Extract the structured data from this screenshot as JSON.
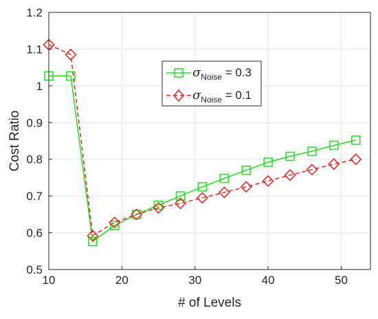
{
  "chart_data": {
    "type": "line",
    "xlabel": "# of Levels",
    "ylabel": "Cost Ratio",
    "xlim": [
      10,
      54
    ],
    "ylim": [
      0.5,
      1.2
    ],
    "xticks": [
      10,
      20,
      30,
      40,
      50
    ],
    "yticks": [
      0.5,
      0.6,
      0.7,
      0.8,
      0.9,
      1,
      1.1,
      1.2
    ],
    "xtick_labels": [
      "10",
      "20",
      "30",
      "40",
      "50"
    ],
    "ytick_labels": [
      "0.5",
      "0.6",
      "0.7",
      "0.8",
      "0.9",
      "1",
      "1.1",
      "1.2"
    ],
    "grid": true,
    "legend_position": "upper-middle",
    "x": [
      10,
      13,
      16,
      19,
      22,
      25,
      28,
      31,
      34,
      37,
      40,
      43,
      46,
      49,
      52
    ],
    "series": [
      {
        "name": "σ_Noise = 0.3",
        "legend_symbol": "σ",
        "legend_sub": "Noise",
        "legend_rest": " = 0.3",
        "color": "#22dd22",
        "line_style": "solid",
        "marker": "square",
        "values": [
          1.027,
          1.027,
          0.576,
          0.62,
          0.65,
          0.675,
          0.7,
          0.725,
          0.748,
          0.77,
          0.792,
          0.808,
          0.822,
          0.838,
          0.852
        ]
      },
      {
        "name": "σ_Noise = 0.1",
        "legend_symbol": "σ",
        "legend_sub": "Noise",
        "legend_rest": " = 0.1",
        "color": "#e52222",
        "line_style": "dashed",
        "marker": "diamond",
        "values": [
          1.112,
          1.085,
          0.592,
          0.628,
          0.65,
          0.668,
          0.68,
          0.695,
          0.71,
          0.725,
          0.741,
          0.757,
          0.772,
          0.787,
          0.8
        ]
      }
    ]
  }
}
